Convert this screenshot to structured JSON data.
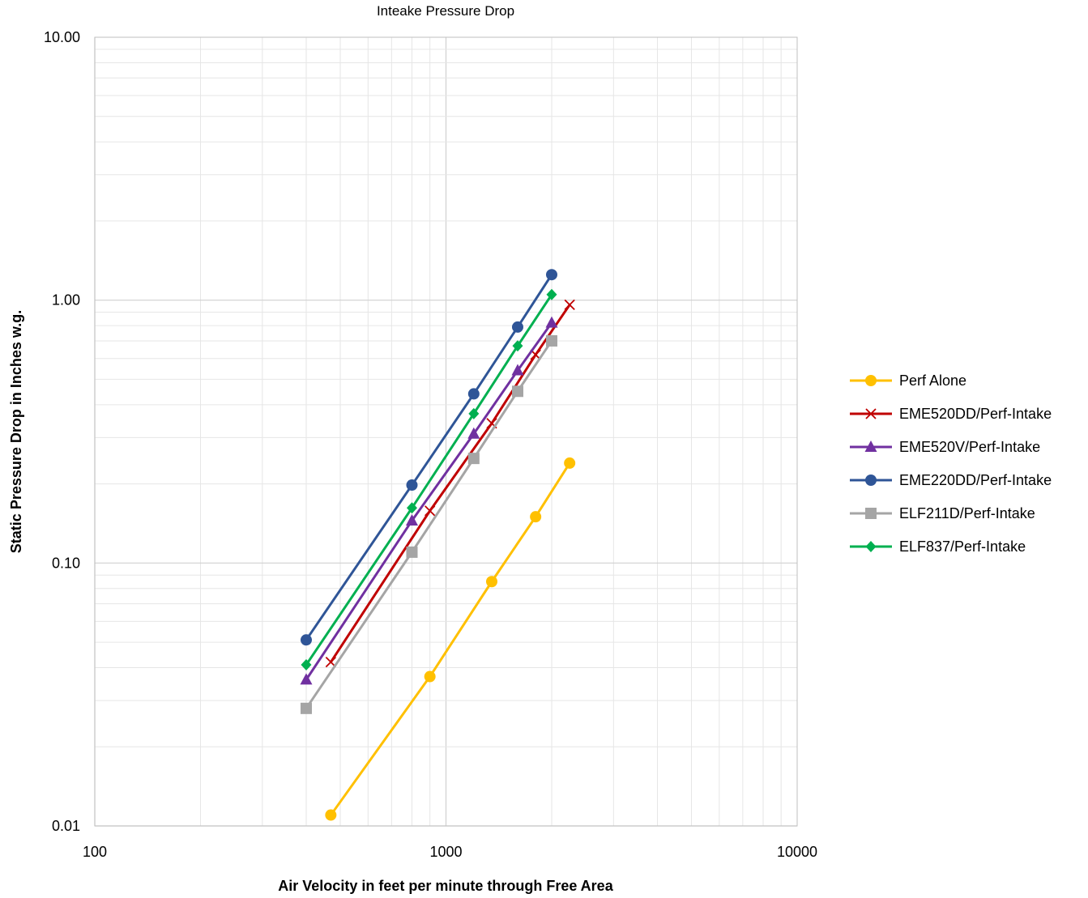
{
  "chart_data": {
    "type": "line",
    "title": "Inteake Pressure Drop",
    "xlabel": "Air Velocity in feet per minute through Free Area",
    "ylabel": "Static Pressure Drop in Inches w.g.",
    "x_scale": "log",
    "y_scale": "log",
    "xlim": [
      100,
      10000
    ],
    "ylim": [
      0.01,
      10
    ],
    "x_ticks": [
      100,
      1000,
      10000
    ],
    "x_tick_labels": [
      "100",
      "1000",
      "10000"
    ],
    "y_ticks": [
      0.01,
      0.1,
      1,
      10
    ],
    "y_tick_labels": [
      "0.01",
      "0.10",
      "1.00",
      "10.00"
    ],
    "grid": true,
    "legend_position": "right",
    "series": [
      {
        "name": "Perf Alone",
        "color": "#FFC000",
        "marker": "circle",
        "x": [
          470,
          900,
          1350,
          1800,
          2250
        ],
        "y": [
          0.011,
          0.037,
          0.085,
          0.15,
          0.24
        ]
      },
      {
        "name": "EME520DD/Perf-Intake",
        "color": "#C00000",
        "marker": "x",
        "x": [
          470,
          900,
          1350,
          1800,
          2250
        ],
        "y": [
          0.042,
          0.158,
          0.34,
          0.62,
          0.96
        ]
      },
      {
        "name": "EME520V/Perf-Intake",
        "color": "#7030A0",
        "marker": "triangle",
        "x": [
          400,
          800,
          1200,
          1600,
          2000
        ],
        "y": [
          0.036,
          0.145,
          0.31,
          0.54,
          0.82
        ]
      },
      {
        "name": "EME220DD/Perf-Intake",
        "color": "#2F5597",
        "marker": "circle",
        "x": [
          400,
          800,
          1200,
          1600,
          2000
        ],
        "y": [
          0.051,
          0.198,
          0.44,
          0.79,
          1.25
        ]
      },
      {
        "name": "ELF211D/Perf-Intake",
        "color": "#A5A5A5",
        "marker": "square",
        "x": [
          400,
          800,
          1200,
          1600,
          2000
        ],
        "y": [
          0.028,
          0.11,
          0.25,
          0.45,
          0.7
        ]
      },
      {
        "name": "ELF837/Perf-Intake",
        "color": "#00B050",
        "marker": "diamond",
        "x": [
          400,
          800,
          1200,
          1600,
          2000
        ],
        "y": [
          0.041,
          0.162,
          0.37,
          0.67,
          1.05
        ]
      }
    ]
  }
}
